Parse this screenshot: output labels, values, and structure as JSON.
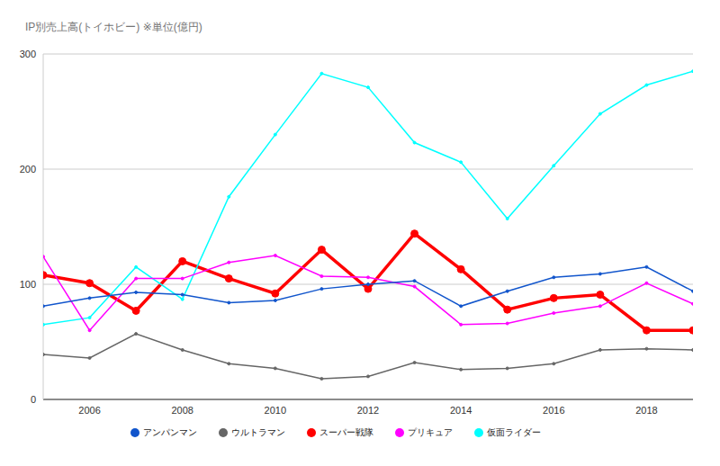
{
  "chart_data": {
    "type": "line",
    "title": "IP別売上高(トイホビー) ※単位(億円)",
    "x": [
      2005,
      2006,
      2007,
      2008,
      2009,
      2010,
      2011,
      2012,
      2013,
      2014,
      2015,
      2016,
      2017,
      2018,
      2019
    ],
    "xlim": [
      2005,
      2019
    ],
    "xticks": [
      2006,
      2008,
      2010,
      2012,
      2014,
      2016,
      2018
    ],
    "ylim": [
      0,
      300
    ],
    "yticks": [
      0,
      100,
      200,
      300
    ],
    "grid": true,
    "legend": "bottom",
    "series": [
      {
        "name": "スーパー戦隊",
        "color": "#ff0000",
        "marker": "circle",
        "values": [
          108,
          101,
          77,
          120,
          105,
          92,
          130,
          96,
          144,
          113,
          78,
          88,
          91,
          60,
          60
        ]
      },
      {
        "name": "仮面ライダー",
        "color": "#00ffff",
        "marker": "circle",
        "values": [
          65,
          71,
          115,
          87,
          176,
          230,
          283,
          271,
          223,
          206,
          157,
          203,
          248,
          273,
          285
        ]
      },
      {
        "name": "プリキュア",
        "color": "#ff00ff",
        "marker": "circle",
        "values": [
          124,
          60,
          105,
          105,
          119,
          125,
          107,
          106,
          98,
          65,
          66,
          75,
          81,
          101,
          83
        ]
      },
      {
        "name": "ウルトラマン",
        "color": "#666666",
        "marker": "circle",
        "values": [
          39,
          36,
          57,
          43,
          31,
          27,
          18,
          20,
          32,
          26,
          27,
          31,
          43,
          44,
          43
        ]
      },
      {
        "name": "アンパンマン",
        "color": "#1155cc",
        "marker": "circle",
        "values": [
          81,
          88,
          93,
          91,
          84,
          86,
          96,
          100,
          103,
          81,
          94,
          106,
          109,
          115,
          94
        ]
      }
    ]
  }
}
